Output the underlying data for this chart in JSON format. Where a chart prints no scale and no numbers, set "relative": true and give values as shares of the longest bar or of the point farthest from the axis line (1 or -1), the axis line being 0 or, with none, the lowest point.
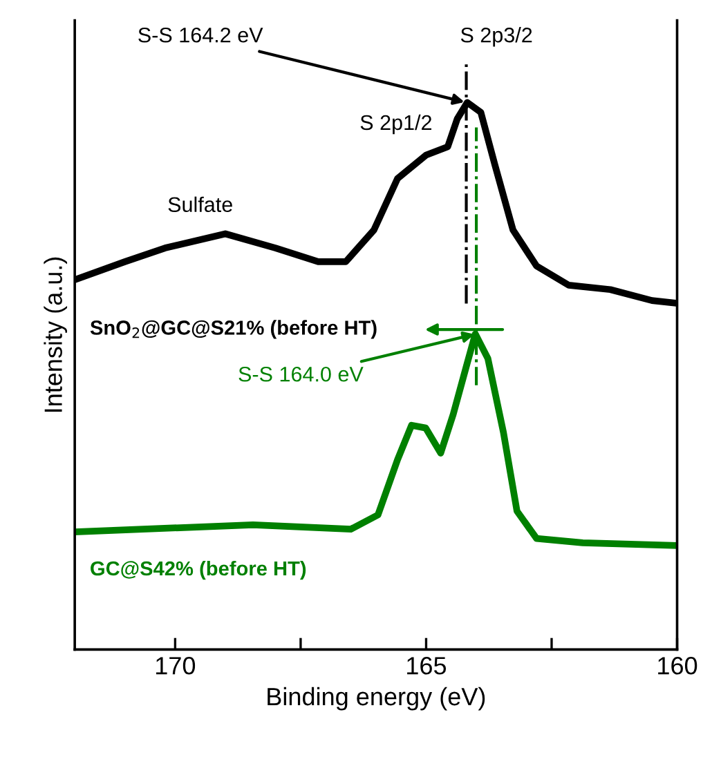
{
  "chart_data": {
    "type": "line",
    "relative": true,
    "xlabel": "Binding energy (eV)",
    "ylabel": "Intensity (a.u.)",
    "xlim": [
      172,
      160
    ],
    "xticks": [
      170,
      165,
      160,
      {
        "value": 167.5,
        "label": null
      },
      {
        "value": 162.5,
        "label": null
      }
    ],
    "series": [
      {
        "name": "SnO$_{2}$@GC@S21% (before HT)",
        "color": "#000000",
        "x": [
          172.0,
          171.0,
          170.2,
          169.0,
          168.0,
          167.15,
          166.6,
          166.04,
          165.57,
          165.0,
          164.57,
          164.38,
          164.18,
          163.91,
          163.63,
          163.27,
          162.8,
          162.16,
          161.33,
          160.5,
          160.0
        ],
        "values": [
          0.676,
          0.709,
          0.734,
          0.76,
          0.734,
          0.709,
          0.709,
          0.767,
          0.861,
          0.904,
          0.919,
          0.97,
          1.0,
          0.982,
          0.886,
          0.767,
          0.701,
          0.666,
          0.658,
          0.638,
          0.633
        ]
      },
      {
        "name": "GC@S42% (before HT)",
        "color": "#008000",
        "x": [
          172.0,
          168.45,
          166.5,
          165.96,
          165.57,
          165.29,
          165.01,
          164.71,
          164.46,
          164.18,
          164.02,
          163.77,
          163.46,
          163.19,
          162.8,
          161.88,
          160.0
        ],
        "values": [
          0.215,
          0.228,
          0.22,
          0.246,
          0.347,
          0.41,
          0.405,
          0.359,
          0.43,
          0.524,
          0.577,
          0.532,
          0.397,
          0.253,
          0.203,
          0.195,
          0.19
        ]
      }
    ],
    "ref_lines": [
      {
        "axis": "x",
        "value": 164.2,
        "color": "#000000",
        "line_style": "dashed"
      },
      {
        "axis": "x",
        "value": 164.0,
        "color": "#008000",
        "line_style": "dashed"
      }
    ],
    "annotations": [
      {
        "text": "S-S 164.2 eV",
        "x": 164.2,
        "y": 1.0
      },
      "S 2p3/2",
      "S 2p1/2",
      "Sulfate",
      {
        "text": "S-S 164.0 eV",
        "x": 164.0,
        "y": 0.577
      }
    ],
    "grid": false
  }
}
